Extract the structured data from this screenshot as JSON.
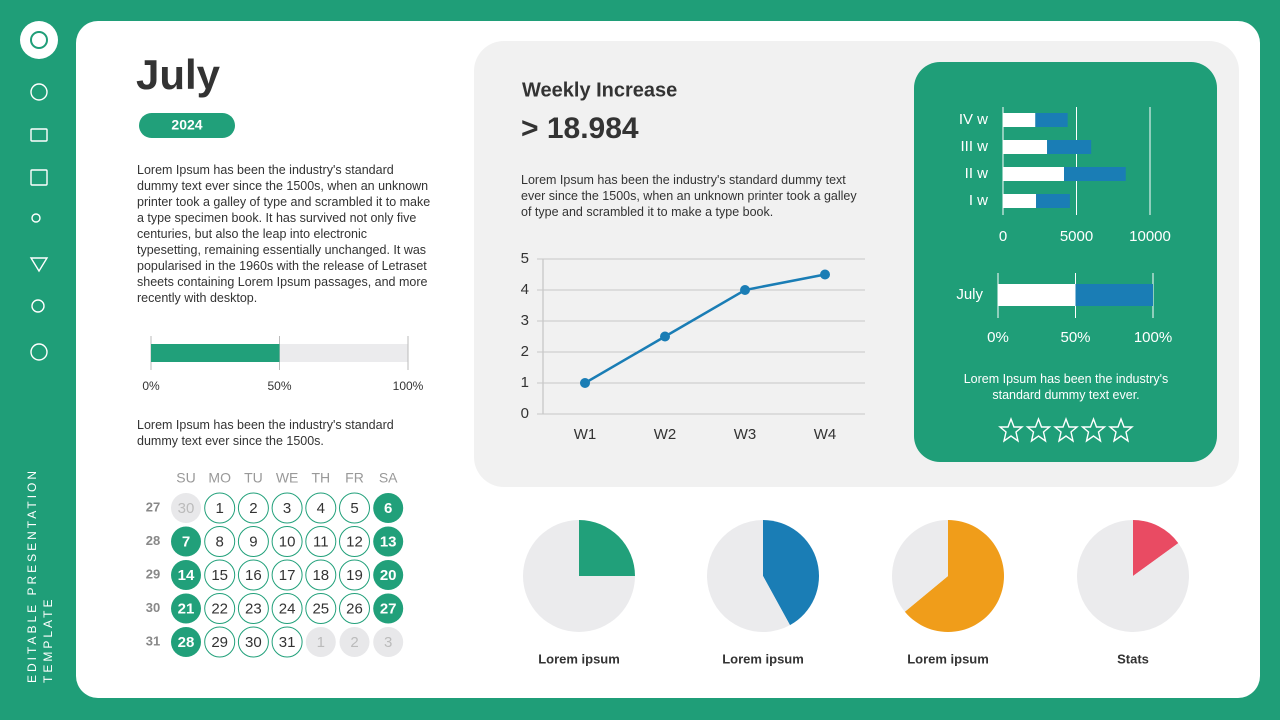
{
  "sidebar": {
    "caption": [
      "EDITABLE PRESENTATION",
      "TEMPLATE"
    ]
  },
  "header": {
    "title": "July",
    "year": "2024"
  },
  "intro": "Lorem Ipsum has been the industry's standard dummy text ever since the 1500s, when an unknown printer took a galley of type and scrambled it to make a type specimen book. It has survived not only five centuries, but also the leap into electronic typesetting, remaining essentially unchanged. It was popularised in the 1960s with the release of Letraset sheets containing Lorem Ipsum passages, and more recently with desktop.",
  "calendar": {
    "text": "Lorem Ipsum has been the industry's standard dummy text ever since the 1500s.",
    "weekdays": [
      "SU",
      "MO",
      "TU",
      "WE",
      "TH",
      "FR",
      "SA"
    ],
    "weeks": [
      {
        "number": "27",
        "days": [
          "30",
          "1",
          "2",
          "3",
          "4",
          "5",
          "6"
        ]
      },
      {
        "number": "28",
        "days": [
          "7",
          "8",
          "9",
          "10",
          "11",
          "12",
          "13"
        ]
      },
      {
        "number": "29",
        "days": [
          "14",
          "15",
          "16",
          "17",
          "18",
          "19",
          "20"
        ]
      },
      {
        "number": "30",
        "days": [
          "21",
          "22",
          "23",
          "24",
          "25",
          "26",
          "27"
        ]
      },
      {
        "number": "31",
        "days": [
          "28",
          "29",
          "30",
          "31",
          "1",
          "2",
          "3"
        ]
      }
    ]
  },
  "chart_data": [
    {
      "type": "bar",
      "orientation": "horizontal",
      "values": [
        50
      ],
      "color": "#21a07a",
      "xlim": [
        0,
        100
      ],
      "xticks": [
        {
          "value": 0,
          "label": "0%"
        },
        {
          "value": 50,
          "label": "50%"
        },
        {
          "value": 100,
          "label": "100%"
        }
      ]
    },
    {
      "type": "line",
      "title": "Weekly Increase",
      "subtitle": "> 18.984",
      "description": "Lorem Ipsum has been the industry's standard dummy text ever since the 1500s, when an unknown printer took a galley of type and scrambled it to make a type book.",
      "categories": [
        "W1",
        "W2",
        "W3",
        "W4"
      ],
      "values": [
        1,
        2.5,
        4,
        4.5
      ],
      "color": "#1a7db5",
      "ylim": [
        0,
        5
      ],
      "yticks": [
        0,
        1,
        2,
        3,
        4,
        5
      ],
      "grid": true
    },
    {
      "type": "bar",
      "orientation": "horizontal",
      "stacked": true,
      "categories": [
        "IV w",
        "III w",
        "II w",
        "I w"
      ],
      "series": [
        {
          "color": "#ffffff",
          "values": [
            2200,
            3000,
            4150,
            2250
          ]
        },
        {
          "color": "#1a7db5",
          "values": [
            2200,
            3000,
            4200,
            2300
          ]
        }
      ],
      "xlim": [
        0,
        10000
      ],
      "xticks": [
        0,
        5000,
        10000
      ],
      "grid": true
    },
    {
      "type": "bar",
      "orientation": "horizontal",
      "stacked": true,
      "description": "Lorem Ipsum has been the industry's standard dummy text ever.",
      "categories": [
        "July"
      ],
      "series": [
        {
          "color": "#ffffff",
          "values": [
            50
          ]
        },
        {
          "color": "#1a7db5",
          "values": [
            50
          ]
        }
      ],
      "xlim": [
        0,
        100
      ],
      "xticks": [
        {
          "value": 0,
          "label": "0%"
        },
        {
          "value": 50,
          "label": "50%"
        },
        {
          "value": 100,
          "label": "100%"
        }
      ],
      "grid": true
    },
    {
      "type": "pie",
      "title": "Lorem ipsum",
      "values": [
        25,
        75
      ],
      "colors": [
        "#21a07a",
        "#ebebed"
      ]
    },
    {
      "type": "pie",
      "title": "Lorem ipsum",
      "values": [
        42,
        58
      ],
      "colors": [
        "#1a7db5",
        "#ebebed"
      ]
    },
    {
      "type": "pie",
      "title": "Lorem ipsum",
      "values": [
        64,
        36
      ],
      "colors": [
        "#f09d1a",
        "#ebebed"
      ]
    },
    {
      "type": "pie",
      "title": "Stats",
      "values": [
        15,
        85
      ],
      "colors": [
        "#e94b63",
        "#ebebed"
      ]
    }
  ]
}
